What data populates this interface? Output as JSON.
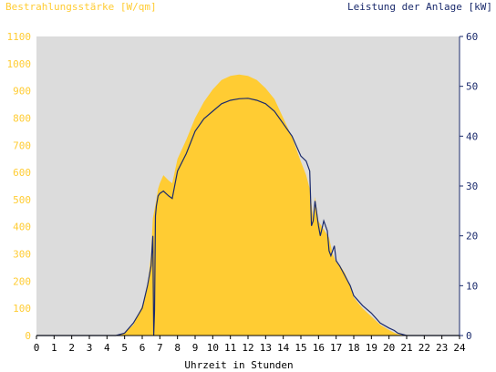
{
  "chart_data": {
    "type": "area",
    "left_axis_title": "Bestrahlungsstärke [W/qm]",
    "right_axis_title": "Leistung der Anlage [kW]",
    "xlabel": "Uhrzeit in Stunden",
    "xlim": [
      0,
      24
    ],
    "x_ticks": [
      "0",
      "1",
      "2",
      "3",
      "4",
      "5",
      "6",
      "7",
      "8",
      "9",
      "10",
      "11",
      "12",
      "13",
      "14",
      "15",
      "16",
      "17",
      "18",
      "19",
      "20",
      "21",
      "22",
      "23",
      "24"
    ],
    "ylim_left": [
      0,
      1100
    ],
    "y_ticks_left": [
      "0",
      "100",
      "200",
      "300",
      "400",
      "500",
      "600",
      "700",
      "800",
      "900",
      "1000",
      "1100"
    ],
    "ylim_right": [
      0,
      60
    ],
    "y_ticks_right": [
      "0",
      "10",
      "20",
      "30",
      "40",
      "50",
      "60"
    ],
    "grid": false,
    "colors": {
      "plot_background": "#dcdcdc",
      "irradiance_fill": "#ffcc33",
      "power_line": "#1a2a6c",
      "left_axis_text": "#ffcc33",
      "right_axis_text": "#1a2a6c",
      "x_axis_text": "#000000"
    },
    "series": [
      {
        "axis": "left",
        "style": "area",
        "x": [
          0,
          4.5,
          5,
          5.5,
          6,
          6.3,
          6.5,
          6.6,
          6.8,
          6.9,
          7,
          7.2,
          7.5,
          7.7,
          8,
          8.5,
          9,
          9.5,
          10,
          10.5,
          11,
          11.5,
          12,
          12.5,
          13,
          13.5,
          14,
          14.5,
          15,
          15.3,
          15.5,
          15.7,
          15.8,
          16,
          16.2,
          16.4,
          16.6,
          16.8,
          17,
          17.2,
          17.5,
          17.8,
          18,
          18.5,
          19,
          19.5,
          20,
          20.3,
          20.5,
          21,
          24
        ],
        "values": [
          0,
          0,
          10,
          40,
          110,
          180,
          300,
          430,
          500,
          540,
          560,
          590,
          570,
          560,
          650,
          720,
          800,
          860,
          905,
          940,
          955,
          960,
          955,
          940,
          910,
          870,
          800,
          730,
          640,
          590,
          540,
          430,
          510,
          420,
          400,
          380,
          360,
          300,
          270,
          260,
          230,
          180,
          140,
          100,
          70,
          40,
          20,
          10,
          5,
          0,
          0
        ]
      },
      {
        "axis": "right",
        "style": "line",
        "x": [
          0,
          4.5,
          5,
          5.5,
          6,
          6.3,
          6.5,
          6.6,
          6.65,
          6.7,
          6.75,
          6.8,
          6.9,
          7,
          7.2,
          7.5,
          7.7,
          8,
          8.5,
          9,
          9.5,
          10,
          10.5,
          11,
          11.5,
          12,
          12.5,
          13,
          13.5,
          14,
          14.5,
          15,
          15.3,
          15.5,
          15.6,
          15.7,
          15.8,
          16,
          16.1,
          16.3,
          16.5,
          16.6,
          16.7,
          16.9,
          17,
          17.2,
          17.5,
          17.8,
          18,
          18.5,
          19,
          19.5,
          20,
          20.3,
          20.5,
          21,
          24
        ],
        "values": [
          0,
          0,
          0.5,
          2.5,
          5.5,
          10,
          14,
          20,
          0,
          5,
          24,
          26,
          28,
          28.5,
          29,
          28,
          27.5,
          33,
          36.5,
          41,
          43.5,
          45,
          46.5,
          47.2,
          47.5,
          47.6,
          47.2,
          46.5,
          45,
          42.5,
          40,
          36,
          35,
          33,
          22,
          23,
          27,
          22,
          20,
          23,
          21,
          17,
          16,
          18,
          15,
          14,
          12,
          10,
          8,
          6,
          4.5,
          2.5,
          1.5,
          1,
          0.5,
          0,
          0
        ]
      }
    ]
  }
}
